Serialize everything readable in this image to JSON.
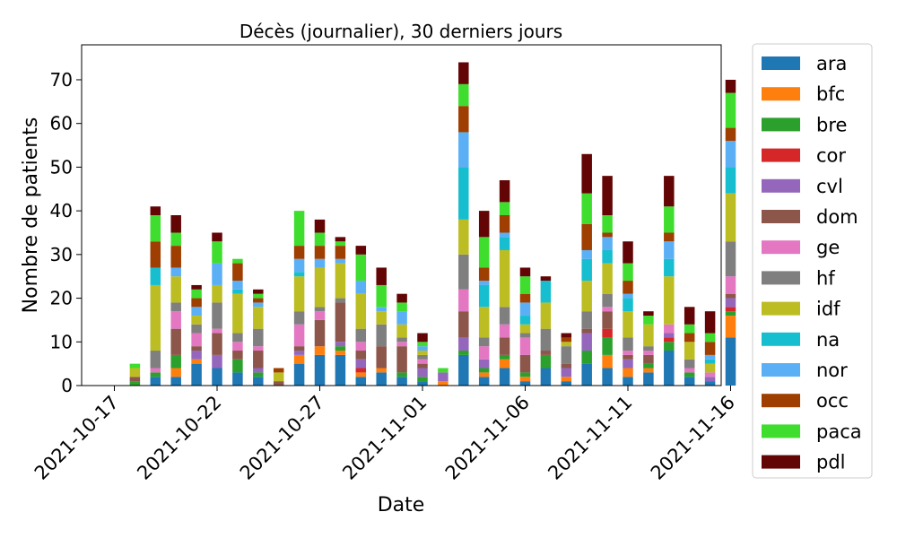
{
  "chart_data": {
    "type": "bar",
    "stacked": true,
    "title": "Décès (journalier), 30 derniers jours",
    "xlabel": "Date",
    "ylabel": "Nombre de patients",
    "ylim": [
      0,
      78
    ],
    "yticks": [
      0,
      10,
      20,
      30,
      40,
      50,
      60,
      70
    ],
    "xticks": [
      "2021-10-17",
      "2021-10-22",
      "2021-10-27",
      "2021-11-01",
      "2021-11-06",
      "2021-11-11",
      "2021-11-16"
    ],
    "legend_position": "outside-right",
    "categories": [
      "2021-10-18",
      "2021-10-19",
      "2021-10-20",
      "2021-10-21",
      "2021-10-22",
      "2021-10-23",
      "2021-10-24",
      "2021-10-25",
      "2021-10-26",
      "2021-10-27",
      "2021-10-28",
      "2021-10-29",
      "2021-10-30",
      "2021-10-31",
      "2021-11-01",
      "2021-11-02",
      "2021-11-03",
      "2021-11-04",
      "2021-11-05",
      "2021-11-06",
      "2021-11-07",
      "2021-11-08",
      "2021-11-09",
      "2021-11-10",
      "2021-11-11",
      "2021-11-12",
      "2021-11-13",
      "2021-11-14",
      "2021-11-15",
      "2021-11-16"
    ],
    "series": [
      {
        "name": "ara",
        "color": "#1f77b4",
        "values": [
          0,
          2,
          2,
          5,
          4,
          3,
          2,
          0,
          5,
          7,
          7,
          2,
          3,
          2,
          1,
          0,
          7,
          2,
          4,
          1,
          4,
          1,
          5,
          4,
          2,
          3,
          8,
          2,
          1,
          11
        ]
      },
      {
        "name": "bfc",
        "color": "#ff7f0e",
        "values": [
          0,
          0,
          2,
          1,
          0,
          0,
          0,
          0,
          2,
          2,
          1,
          1,
          1,
          0,
          0,
          1,
          0,
          1,
          2,
          1,
          0,
          1,
          0,
          3,
          2,
          1,
          0,
          0,
          0,
          5
        ]
      },
      {
        "name": "bre",
        "color": "#2ca02c",
        "values": [
          1,
          1,
          3,
          0,
          0,
          3,
          1,
          0,
          0,
          0,
          1,
          0,
          0,
          1,
          1,
          0,
          1,
          1,
          1,
          1,
          3,
          0,
          3,
          4,
          0,
          1,
          2,
          1,
          0,
          1
        ]
      },
      {
        "name": "cor",
        "color": "#d62728",
        "values": [
          0,
          0,
          0,
          0,
          0,
          0,
          0,
          0,
          0,
          0,
          0,
          1,
          0,
          0,
          0,
          0,
          0,
          0,
          0,
          0,
          0,
          0,
          0,
          2,
          0,
          0,
          1,
          0,
          0,
          1
        ]
      },
      {
        "name": "cvl",
        "color": "#9467bd",
        "values": [
          0,
          0,
          0,
          2,
          3,
          0,
          1,
          0,
          1,
          0,
          1,
          2,
          0,
          0,
          2,
          2,
          3,
          2,
          0,
          0,
          0,
          2,
          4,
          0,
          2,
          0,
          1,
          0,
          1,
          2
        ]
      },
      {
        "name": "dom",
        "color": "#8c564b",
        "values": [
          1,
          0,
          6,
          1,
          5,
          2,
          4,
          1,
          1,
          6,
          9,
          2,
          5,
          6,
          1,
          0,
          6,
          0,
          4,
          4,
          1,
          1,
          1,
          4,
          1,
          2,
          0,
          0,
          0,
          1
        ]
      },
      {
        "name": "ge",
        "color": "#e377c2",
        "values": [
          0,
          1,
          4,
          3,
          1,
          2,
          1,
          0,
          5,
          2,
          0,
          2,
          0,
          1,
          1,
          0,
          5,
          3,
          3,
          4,
          0,
          0,
          0,
          1,
          1,
          1,
          2,
          1,
          1,
          4
        ]
      },
      {
        "name": "hf",
        "color": "#7f7f7f",
        "values": [
          0,
          4,
          2,
          2,
          6,
          2,
          4,
          0,
          3,
          1,
          1,
          3,
          5,
          1,
          1,
          0,
          8,
          2,
          4,
          1,
          5,
          4,
          4,
          3,
          3,
          1,
          0,
          2,
          0,
          8
        ]
      },
      {
        "name": "idf",
        "color": "#bcbd22",
        "values": [
          2,
          15,
          6,
          2,
          4,
          9,
          5,
          2,
          8,
          9,
          8,
          8,
          3,
          3,
          1,
          0,
          8,
          7,
          13,
          2,
          6,
          1,
          7,
          7,
          6,
          5,
          11,
          4,
          2,
          11
        ]
      },
      {
        "name": "na",
        "color": "#17becf",
        "values": [
          0,
          4,
          0,
          0,
          0,
          1,
          0,
          0,
          1,
          0,
          0,
          0,
          0,
          0,
          0,
          0,
          12,
          5,
          3,
          2,
          5,
          0,
          5,
          3,
          3,
          0,
          4,
          0,
          1,
          6
        ]
      },
      {
        "name": "nor",
        "color": "#5bb0f5",
        "values": [
          0,
          0,
          2,
          2,
          5,
          2,
          1,
          0,
          3,
          2,
          1,
          3,
          1,
          3,
          1,
          0,
          8,
          1,
          1,
          3,
          0,
          0,
          2,
          3,
          1,
          0,
          4,
          0,
          1,
          6
        ]
      },
      {
        "name": "occ",
        "color": "#9e3e00",
        "values": [
          0,
          6,
          5,
          2,
          0,
          4,
          1,
          1,
          3,
          3,
          3,
          0,
          0,
          0,
          0,
          0,
          6,
          3,
          4,
          2,
          0,
          1,
          6,
          1,
          3,
          0,
          2,
          2,
          3,
          3
        ]
      },
      {
        "name": "paca",
        "color": "#3fdd2e",
        "values": [
          1,
          6,
          3,
          2,
          5,
          1,
          1,
          0,
          8,
          3,
          1,
          6,
          5,
          2,
          1,
          1,
          5,
          7,
          3,
          4,
          0,
          0,
          7,
          4,
          4,
          2,
          6,
          2,
          2,
          8
        ]
      },
      {
        "name": "pdl",
        "color": "#630505",
        "values": [
          0,
          2,
          4,
          1,
          2,
          0,
          1,
          0,
          0,
          3,
          1,
          2,
          4,
          2,
          2,
          0,
          5,
          6,
          5,
          2,
          1,
          1,
          9,
          9,
          5,
          1,
          7,
          4,
          5,
          3
        ]
      }
    ]
  }
}
